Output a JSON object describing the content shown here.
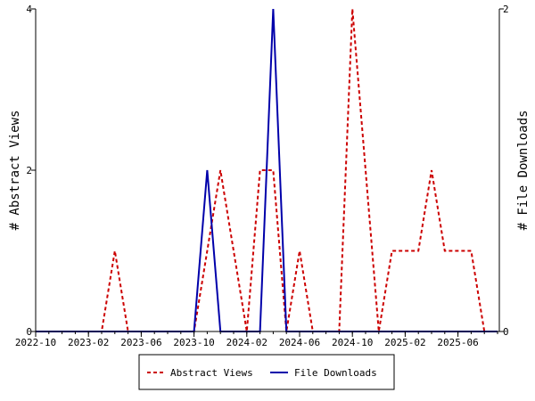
{
  "chart_data": {
    "type": "line",
    "title": "",
    "x_ticks": [
      "2022-10",
      "2023-02",
      "2023-06",
      "2023-10",
      "2024-02",
      "2024-06",
      "2024-10",
      "2025-02",
      "2025-06"
    ],
    "x": [
      "2022-10",
      "2022-11",
      "2022-12",
      "2023-01",
      "2023-02",
      "2023-03",
      "2023-04",
      "2023-05",
      "2023-06",
      "2023-07",
      "2023-08",
      "2023-09",
      "2023-10",
      "2023-11",
      "2023-12",
      "2024-01",
      "2024-02",
      "2024-03",
      "2024-04",
      "2024-05",
      "2024-06",
      "2024-07",
      "2024-08",
      "2024-09",
      "2024-10",
      "2024-11",
      "2024-12",
      "2025-01",
      "2025-02",
      "2025-03",
      "2025-04",
      "2025-05",
      "2025-06",
      "2025-07",
      "2025-08",
      "2025-09"
    ],
    "y_left": {
      "label": "# Abstract Views",
      "ticks": [
        "0",
        "2",
        "4"
      ],
      "range": [
        0,
        4
      ]
    },
    "y_right": {
      "label": "# File Downloads",
      "ticks": [
        "0",
        "2"
      ],
      "range": [
        0,
        2
      ]
    },
    "series": [
      {
        "name": "Abstract Views",
        "axis": "left",
        "color": "#cc0000",
        "style": "dashed",
        "values": [
          0,
          0,
          0,
          0,
          0,
          0,
          1,
          0,
          0,
          0,
          0,
          0,
          0,
          1,
          2,
          1,
          0,
          2,
          2,
          0,
          1,
          0,
          0,
          0,
          4,
          2,
          0,
          1,
          1,
          1,
          2,
          1,
          1,
          1,
          0,
          0
        ]
      },
      {
        "name": "File Downloads",
        "axis": "right",
        "color": "#0000aa",
        "style": "solid",
        "values": [
          0,
          0,
          0,
          0,
          0,
          0,
          0,
          0,
          0,
          0,
          0,
          0,
          0,
          1,
          0,
          0,
          0,
          0,
          2,
          0,
          0,
          0,
          0,
          0,
          0,
          0,
          0,
          0,
          0,
          0,
          0,
          0,
          0,
          0,
          0,
          0
        ]
      }
    ],
    "grid": false,
    "legend_position": "bottom"
  }
}
